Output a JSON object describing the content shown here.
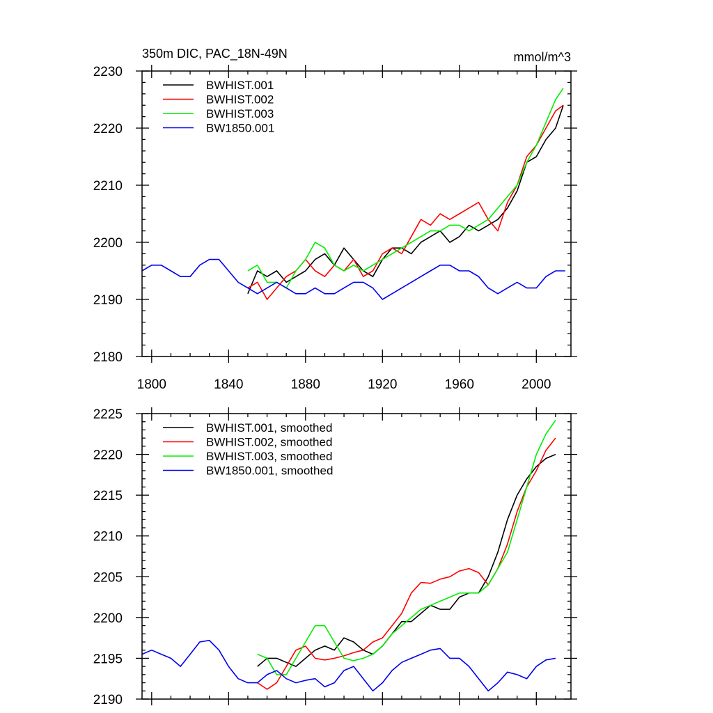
{
  "chart_data": [
    {
      "type": "line",
      "title": "350m DIC, PAC_18N-49N",
      "units": "mmol/m^3",
      "xlim": [
        1795,
        2018
      ],
      "ylim": [
        2180,
        2230
      ],
      "xticks": [
        1800,
        1840,
        1880,
        1920,
        1960,
        2000
      ],
      "yticks": [
        2180,
        2190,
        2200,
        2210,
        2220,
        2230
      ],
      "legend_position": "top-left",
      "series": [
        {
          "name": "BWHIST.001",
          "color": "#000000",
          "x": [
            1850,
            1855,
            1860,
            1865,
            1870,
            1875,
            1880,
            1885,
            1890,
            1895,
            1900,
            1905,
            1910,
            1915,
            1920,
            1925,
            1930,
            1935,
            1940,
            1945,
            1950,
            1955,
            1960,
            1965,
            1970,
            1975,
            1980,
            1985,
            1990,
            1995,
            2000,
            2005,
            2010,
            2014
          ],
          "y": [
            2191,
            2195,
            2194,
            2195,
            2193,
            2194,
            2195,
            2197,
            2198,
            2196,
            2199,
            2197,
            2195,
            2194,
            2197,
            2199,
            2199,
            2198,
            2200,
            2201,
            2202,
            2200,
            2201,
            2203,
            2202,
            2203,
            2204,
            2206,
            2209,
            2214,
            2215,
            2218,
            2220,
            2224
          ]
        },
        {
          "name": "BWHIST.002",
          "color": "#ff0000",
          "x": [
            1850,
            1855,
            1860,
            1865,
            1870,
            1875,
            1880,
            1885,
            1890,
            1895,
            1900,
            1905,
            1910,
            1915,
            1920,
            1925,
            1930,
            1935,
            1940,
            1945,
            1950,
            1955,
            1960,
            1965,
            1970,
            1975,
            1980,
            1985,
            1990,
            1995,
            2000,
            2005,
            2010,
            2014
          ],
          "y": [
            2192,
            2193,
            2190,
            2192,
            2194,
            2195,
            2197,
            2195,
            2194,
            2196,
            2195,
            2197,
            2194,
            2195,
            2198,
            2199,
            2198,
            2201,
            2204,
            2203,
            2205,
            2204,
            2205,
            2206,
            2207,
            2204,
            2202,
            2207,
            2210,
            2215,
            2217,
            2220,
            2223,
            2224
          ]
        },
        {
          "name": "BWHIST.003",
          "color": "#00ee00",
          "x": [
            1850,
            1855,
            1860,
            1865,
            1870,
            1875,
            1880,
            1885,
            1890,
            1895,
            1900,
            1905,
            1910,
            1915,
            1920,
            1925,
            1930,
            1935,
            1940,
            1945,
            1950,
            1955,
            1960,
            1965,
            1970,
            1975,
            1980,
            1985,
            1990,
            1995,
            2000,
            2005,
            2010,
            2014
          ],
          "y": [
            2195,
            2196,
            2193,
            2193,
            2192,
            2195,
            2197,
            2200,
            2199,
            2196,
            2195,
            2196,
            2195,
            2196,
            2197,
            2198,
            2199,
            2200,
            2201,
            2202,
            2202,
            2203,
            2203,
            2202,
            2203,
            2204,
            2206,
            2208,
            2210,
            2214,
            2217,
            2221,
            2225,
            2227
          ]
        },
        {
          "name": "BW1850.001",
          "color": "#0000ee",
          "x": [
            1795,
            1800,
            1805,
            1810,
            1815,
            1820,
            1825,
            1830,
            1835,
            1840,
            1845,
            1850,
            1855,
            1860,
            1865,
            1870,
            1875,
            1880,
            1885,
            1890,
            1895,
            1900,
            1905,
            1910,
            1915,
            1920,
            1925,
            1930,
            1935,
            1940,
            1945,
            1950,
            1955,
            1960,
            1965,
            1970,
            1975,
            1980,
            1985,
            1990,
            1995,
            2000,
            2005,
            2010,
            2015
          ],
          "y": [
            2195,
            2196,
            2196,
            2195,
            2194,
            2194,
            2196,
            2197,
            2197,
            2195,
            2193,
            2192,
            2191,
            2192,
            2193,
            2192,
            2191,
            2191,
            2192,
            2191,
            2191,
            2192,
            2193,
            2193,
            2192,
            2190,
            2191,
            2192,
            2193,
            2194,
            2195,
            2196,
            2196,
            2195,
            2195,
            2194,
            2192,
            2191,
            2192,
            2193,
            2192,
            2192,
            2194,
            2195,
            2195
          ]
        }
      ]
    },
    {
      "type": "line",
      "xlim": [
        1795,
        2018
      ],
      "ylim": [
        2190,
        2225
      ],
      "xticks": [
        1800,
        1840,
        1880,
        1920,
        1960,
        2000
      ],
      "yticks": [
        2190,
        2195,
        2200,
        2205,
        2210,
        2215,
        2220,
        2225
      ],
      "legend_position": "top-left",
      "series": [
        {
          "name": "BWHIST.001, smoothed",
          "color": "#000000",
          "x": [
            1855,
            1860,
            1865,
            1870,
            1875,
            1880,
            1885,
            1890,
            1895,
            1900,
            1905,
            1910,
            1915,
            1920,
            1925,
            1930,
            1935,
            1940,
            1945,
            1950,
            1955,
            1960,
            1965,
            1970,
            1975,
            1980,
            1985,
            1990,
            1995,
            2000,
            2005,
            2010
          ],
          "y": [
            2194,
            2195,
            2195,
            2194.5,
            2194,
            2195,
            2196,
            2196.5,
            2196,
            2197.5,
            2197,
            2196,
            2195.5,
            2196.5,
            2198,
            2199.5,
            2199.5,
            2200.5,
            2201.5,
            2201,
            2201,
            2202.5,
            2203,
            2203,
            2205,
            2208,
            2212,
            2215,
            2217,
            2218.5,
            2219.5,
            2220
          ]
        },
        {
          "name": "BWHIST.002, smoothed",
          "color": "#ff0000",
          "x": [
            1855,
            1860,
            1865,
            1870,
            1875,
            1880,
            1885,
            1890,
            1895,
            1900,
            1905,
            1910,
            1915,
            1920,
            1925,
            1930,
            1935,
            1940,
            1945,
            1950,
            1955,
            1960,
            1965,
            1970,
            1975,
            1980,
            1985,
            1990,
            1995,
            2000,
            2005,
            2010
          ],
          "y": [
            2192,
            2191.2,
            2192,
            2194,
            2196,
            2196.5,
            2195,
            2194.8,
            2195,
            2195.3,
            2195.7,
            2196,
            2197,
            2197.5,
            2199,
            2200.5,
            2203,
            2204.3,
            2204.2,
            2204.7,
            2205,
            2205.7,
            2206,
            2205.5,
            2204,
            2206,
            2209,
            2213,
            2216,
            2218,
            2220.5,
            2222
          ]
        },
        {
          "name": "BWHIST.003, smoothed",
          "color": "#00ee00",
          "x": [
            1855,
            1860,
            1865,
            1870,
            1875,
            1880,
            1885,
            1890,
            1895,
            1900,
            1905,
            1910,
            1915,
            1920,
            1925,
            1930,
            1935,
            1940,
            1945,
            1950,
            1955,
            1960,
            1965,
            1970,
            1975,
            1980,
            1985,
            1990,
            1995,
            2000,
            2005,
            2010
          ],
          "y": [
            2195.5,
            2195,
            2193,
            2193,
            2195,
            2197,
            2199,
            2199,
            2197,
            2195,
            2194.7,
            2195,
            2195.5,
            2196.5,
            2198,
            2199,
            2200,
            2201,
            2201.5,
            2202,
            2202.5,
            2203,
            2203,
            2203,
            2204,
            2206,
            2208,
            2212,
            2216,
            2220,
            2222.5,
            2224.2
          ]
        },
        {
          "name": "BW1850.001, smoothed",
          "color": "#0000ee",
          "x": [
            1795,
            1800,
            1805,
            1810,
            1815,
            1820,
            1825,
            1830,
            1835,
            1840,
            1845,
            1850,
            1855,
            1860,
            1865,
            1870,
            1875,
            1880,
            1885,
            1890,
            1895,
            1900,
            1905,
            1910,
            1915,
            1920,
            1925,
            1930,
            1935,
            1940,
            1945,
            1950,
            1955,
            1960,
            1965,
            1970,
            1975,
            1980,
            1985,
            1990,
            1995,
            2000,
            2005,
            2010
          ],
          "y": [
            2195.5,
            2196,
            2195.5,
            2195,
            2194,
            2195.5,
            2197,
            2197.2,
            2196,
            2194,
            2192.5,
            2192,
            2192,
            2193,
            2193.5,
            2192.5,
            2192,
            2192.3,
            2192.5,
            2191.5,
            2192,
            2193.5,
            2194,
            2192.5,
            2191,
            2192,
            2193.5,
            2194.5,
            2195,
            2195.5,
            2196,
            2196.2,
            2195,
            2195,
            2194,
            2192.5,
            2191,
            2192,
            2193.3,
            2193,
            2192.5,
            2194,
            2194.8,
            2195
          ]
        }
      ]
    }
  ]
}
